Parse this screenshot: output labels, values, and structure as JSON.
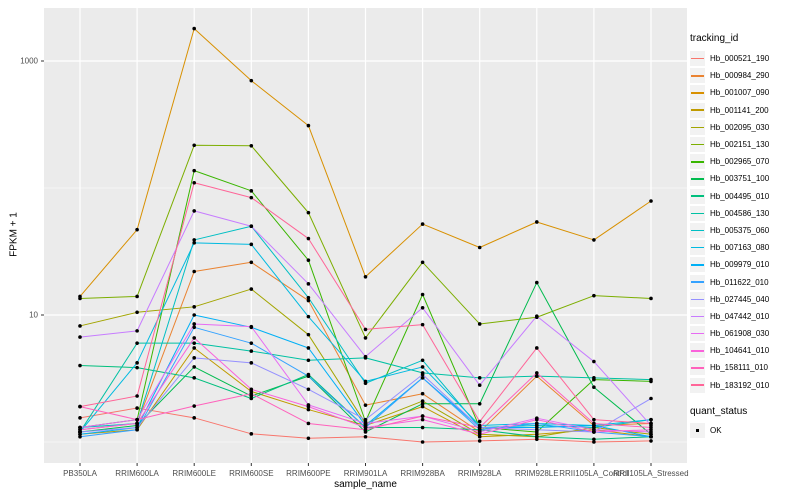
{
  "panel": {
    "background": "#EBEBEB",
    "gridline_color": "#FFFFFF",
    "tick_mark_color": "#333333",
    "tick_label_color": "#4D4D4D",
    "axis_title_color": "#000000"
  },
  "legend": {
    "tracking_title": "tracking_id",
    "quant_title": "quant_status",
    "quant_items": [
      {
        "label": "OK",
        "key": "black-point"
      }
    ],
    "key_fill": "#F2F2F2"
  },
  "chart_data": {
    "type": "line",
    "x_type": "categorical",
    "y_scale": "log10",
    "xlabel": "sample_name",
    "ylabel": "FPKM + 1",
    "ylim": [
      0.68,
      2600
    ],
    "y_major_ticks": [
      {
        "label": "1000",
        "value": 1000
      },
      {
        "label": "10",
        "value": 10
      }
    ],
    "y_minor_gridlines": [
      100,
      1
    ],
    "grid": "major-and-minor",
    "legend_position": "right",
    "point_marker": {
      "shape": "circle",
      "color": "#000000",
      "radius": 1.8
    },
    "categories": [
      "PB350LA",
      "RRIM600LA",
      "RRIM600LE",
      "RRIM600SE",
      "RRIM600PE",
      "RRIM901LA",
      "RRIM928BA",
      "RRIM928LA",
      "RRIM928LE",
      "RRII105LA_Control",
      "RRII105LA_Stressed"
    ],
    "series": [
      {
        "name": "Hb_000521_190",
        "color": "#F8766D",
        "values": [
          1.55,
          1.85,
          1.55,
          1.16,
          1.07,
          1.1,
          1.0,
          1.02,
          1.05,
          1.0,
          1.02
        ]
      },
      {
        "name": "Hb_000984_290",
        "color": "#EA8331",
        "values": [
          1.25,
          1.4,
          22,
          26,
          13,
          1.95,
          2.4,
          1.2,
          3.3,
          1.35,
          1.4
        ]
      },
      {
        "name": "Hb_001007_090",
        "color": "#D89000",
        "values": [
          14,
          47,
          1800,
          700,
          310,
          20,
          52,
          34,
          54,
          39,
          79
        ]
      },
      {
        "name": "Hb_001141_200",
        "color": "#C09B00",
        "values": [
          1.15,
          1.25,
          5.5,
          2.5,
          1.8,
          1.35,
          1.9,
          1.1,
          1.15,
          1.25,
          1.1
        ]
      },
      {
        "name": "Hb_002095_030",
        "color": "#A3A500",
        "values": [
          8.2,
          10.5,
          11.6,
          16,
          7.0,
          1.4,
          2.1,
          1.15,
          1.1,
          1.3,
          1.15
        ]
      },
      {
        "name": "Hb_002151_130",
        "color": "#7CAE00",
        "values": [
          13.5,
          14,
          217,
          215,
          64,
          6.6,
          26,
          8.5,
          9.6,
          14.2,
          13.5
        ]
      },
      {
        "name": "Hb_002965_070",
        "color": "#39B600",
        "values": [
          1.3,
          1.5,
          137,
          95,
          27,
          1.45,
          14.5,
          1.3,
          1.2,
          3.1,
          3.0
        ]
      },
      {
        "name": "Hb_003751_100",
        "color": "#00BB4E",
        "values": [
          1.2,
          1.35,
          3.9,
          2.3,
          3.3,
          1.2,
          2.0,
          2.0,
          18,
          2.7,
          1.15
        ]
      },
      {
        "name": "Hb_004495_010",
        "color": "#00BF7D",
        "values": [
          4.0,
          3.85,
          3.2,
          2.2,
          3.4,
          1.3,
          1.3,
          1.25,
          1.1,
          1.05,
          1.1
        ]
      },
      {
        "name": "Hb_004586_130",
        "color": "#00C1A3",
        "values": [
          1.2,
          6.0,
          6.0,
          5.2,
          4.4,
          4.6,
          3.5,
          3.2,
          3.3,
          3.2,
          3.1
        ]
      },
      {
        "name": "Hb_005375_060",
        "color": "#00BFC4",
        "values": [
          1.3,
          1.4,
          39,
          50,
          13.7,
          2.9,
          4.4,
          1.3,
          1.35,
          1.3,
          1.5
        ]
      },
      {
        "name": "Hb_007163_080",
        "color": "#00BAE0",
        "values": [
          1.2,
          4.2,
          37,
          36,
          9.7,
          3.0,
          3.9,
          1.35,
          1.4,
          1.35,
          1.5
        ]
      },
      {
        "name": "Hb_009979_010",
        "color": "#00B0F6",
        "values": [
          1.15,
          1.3,
          10,
          8.0,
          5.5,
          1.35,
          3.2,
          1.3,
          1.3,
          1.35,
          1.1
        ]
      },
      {
        "name": "Hb_011622_010",
        "color": "#35A2FF",
        "values": [
          1.1,
          1.25,
          8.0,
          6.0,
          3.3,
          1.3,
          3.2,
          1.25,
          1.4,
          1.2,
          1.1
        ]
      },
      {
        "name": "Hb_027445_040",
        "color": "#9590FF",
        "values": [
          1.2,
          1.3,
          4.6,
          4.2,
          2.6,
          1.5,
          3.4,
          1.3,
          1.25,
          1.2,
          2.2
        ]
      },
      {
        "name": "Hb_047442_010",
        "color": "#C77CFF",
        "values": [
          6.7,
          7.5,
          66,
          50,
          17.6,
          4.7,
          11.4,
          2.8,
          9.8,
          4.3,
          1.35
        ]
      },
      {
        "name": "Hb_061908_030",
        "color": "#E76BF3",
        "values": [
          1.3,
          1.5,
          8.5,
          8.1,
          1.96,
          1.4,
          1.6,
          1.2,
          1.54,
          1.25,
          1.2
        ]
      },
      {
        "name": "Hb_104641_010",
        "color": "#FA62DB",
        "values": [
          1.25,
          1.4,
          6.6,
          2.6,
          1.9,
          1.3,
          1.5,
          1.15,
          1.5,
          1.2,
          1.25
        ]
      },
      {
        "name": "Hb_158111_010",
        "color": "#FF62BC",
        "values": [
          1.9,
          1.5,
          1.92,
          2.4,
          1.4,
          1.25,
          1.6,
          1.3,
          3.5,
          1.4,
          1.3
        ]
      },
      {
        "name": "Hb_183192_010",
        "color": "#FF6598",
        "values": [
          1.9,
          2.3,
          110,
          84,
          40,
          7.7,
          8.4,
          1.45,
          5.5,
          1.5,
          1.4
        ]
      }
    ]
  }
}
